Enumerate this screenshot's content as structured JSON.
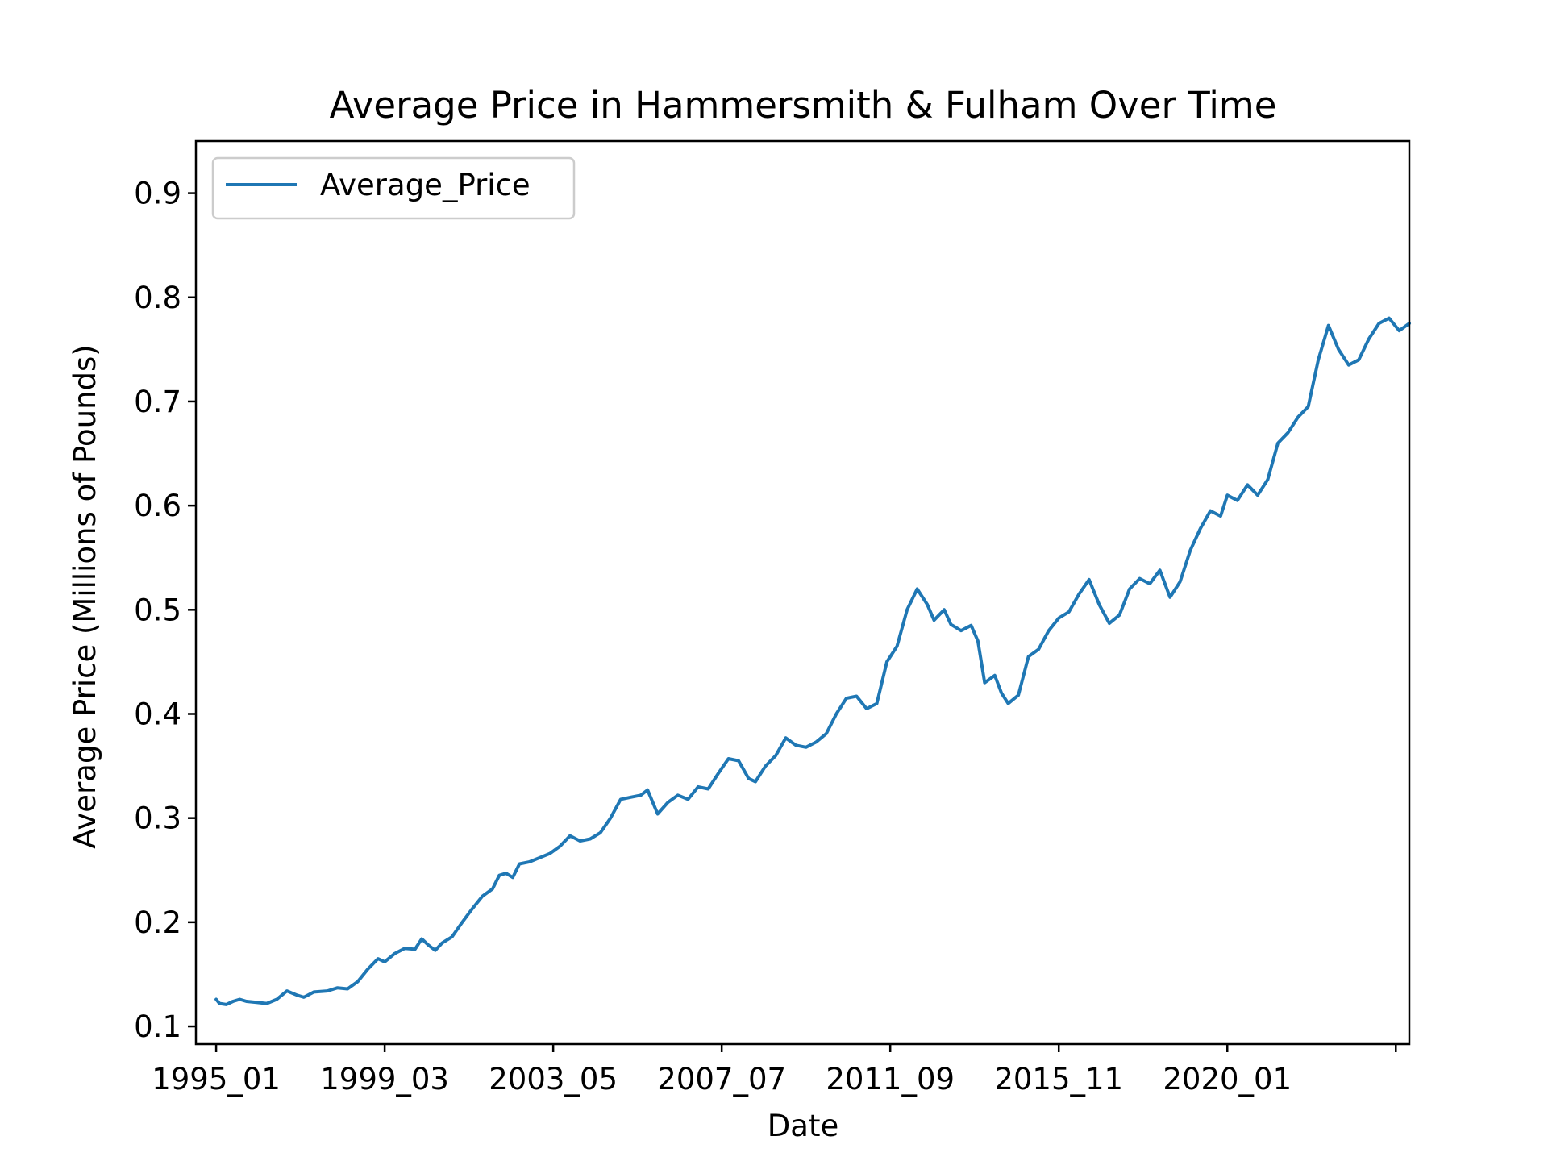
{
  "chart_data": {
    "type": "line",
    "title": "Average Price in Hammersmith & Fulham Over Time",
    "xlabel": "Date",
    "ylabel": "Average Price (Millions of Pounds)",
    "x_tick_labels": [
      "1995_01",
      "1999_03",
      "2003_05",
      "2007_07",
      "2011_09",
      "2015_11",
      "2020_01",
      ""
    ],
    "y_tick_labels": [
      "0.1",
      "0.2",
      "0.3",
      "0.4",
      "0.5",
      "0.6",
      "0.7",
      "0.8",
      "0.9"
    ],
    "y_ticks": [
      0.1,
      0.2,
      0.3,
      0.4,
      0.5,
      0.6,
      0.7,
      0.8,
      0.9
    ],
    "ylim": [
      0.083,
      0.95
    ],
    "xlim": [
      "1994_07",
      "2024_07"
    ],
    "legend_position": "top-left",
    "grid": false,
    "series": [
      {
        "name": "Average_Price",
        "color": "#1f77b4",
        "points": [
          [
            "1995_01",
            0.126
          ],
          [
            "1995_02",
            0.122
          ],
          [
            "1995_04",
            0.121
          ],
          [
            "1995_06",
            0.124
          ],
          [
            "1995_08",
            0.126
          ],
          [
            "1995_10",
            0.124
          ],
          [
            "1996_01",
            0.123
          ],
          [
            "1996_04",
            0.122
          ],
          [
            "1996_07",
            0.126
          ],
          [
            "1996_10",
            0.134
          ],
          [
            "1997_01",
            0.13
          ],
          [
            "1997_03",
            0.128
          ],
          [
            "1997_06",
            0.133
          ],
          [
            "1997_10",
            0.134
          ],
          [
            "1998_01",
            0.137
          ],
          [
            "1998_04",
            0.136
          ],
          [
            "1998_07",
            0.143
          ],
          [
            "1998_10",
            0.155
          ],
          [
            "1999_01",
            0.165
          ],
          [
            "1999_03",
            0.162
          ],
          [
            "1999_06",
            0.17
          ],
          [
            "1999_09",
            0.175
          ],
          [
            "1999_12",
            0.174
          ],
          [
            "2000_02",
            0.184
          ],
          [
            "2000_04",
            0.178
          ],
          [
            "2000_06",
            0.173
          ],
          [
            "2000_08",
            0.18
          ],
          [
            "2000_11",
            0.186
          ],
          [
            "2001_02",
            0.2
          ],
          [
            "2001_05",
            0.213
          ],
          [
            "2001_08",
            0.225
          ],
          [
            "2001_11",
            0.232
          ],
          [
            "2002_01",
            0.245
          ],
          [
            "2002_03",
            0.247
          ],
          [
            "2002_05",
            0.243
          ],
          [
            "2002_07",
            0.256
          ],
          [
            "2002_10",
            0.258
          ],
          [
            "2003_01",
            0.262
          ],
          [
            "2003_04",
            0.266
          ],
          [
            "2003_07",
            0.273
          ],
          [
            "2003_10",
            0.283
          ],
          [
            "2004_01",
            0.278
          ],
          [
            "2004_04",
            0.28
          ],
          [
            "2004_07",
            0.286
          ],
          [
            "2004_10",
            0.3
          ],
          [
            "2005_01",
            0.318
          ],
          [
            "2005_04",
            0.32
          ],
          [
            "2005_07",
            0.322
          ],
          [
            "2005_09",
            0.327
          ],
          [
            "2005_12",
            0.304
          ],
          [
            "2006_03",
            0.315
          ],
          [
            "2006_06",
            0.322
          ],
          [
            "2006_09",
            0.318
          ],
          [
            "2006_12",
            0.33
          ],
          [
            "2007_03",
            0.328
          ],
          [
            "2007_06",
            0.343
          ],
          [
            "2007_09",
            0.357
          ],
          [
            "2007_12",
            0.355
          ],
          [
            "2008_03",
            0.338
          ],
          [
            "2008_05",
            0.335
          ],
          [
            "2008_08",
            0.35
          ],
          [
            "2008_11",
            0.36
          ],
          [
            "2009_02",
            0.377
          ],
          [
            "2009_05",
            0.37
          ],
          [
            "2009_08",
            0.368
          ],
          [
            "2009_11",
            0.373
          ],
          [
            "2010_02",
            0.381
          ],
          [
            "2010_05",
            0.4
          ],
          [
            "2010_08",
            0.415
          ],
          [
            "2010_11",
            0.417
          ],
          [
            "2011_02",
            0.405
          ],
          [
            "2011_05",
            0.41
          ],
          [
            "2011_08",
            0.45
          ],
          [
            "2011_11",
            0.465
          ],
          [
            "2012_02",
            0.5
          ],
          [
            "2012_05",
            0.52
          ],
          [
            "2012_08",
            0.505
          ],
          [
            "2012_10",
            0.49
          ],
          [
            "2013_01",
            0.5
          ],
          [
            "2013_03",
            0.486
          ],
          [
            "2013_06",
            0.48
          ],
          [
            "2013_09",
            0.485
          ],
          [
            "2013_11",
            0.47
          ],
          [
            "2014_01",
            0.43
          ],
          [
            "2014_04",
            0.437
          ],
          [
            "2014_06",
            0.42
          ],
          [
            "2014_08",
            0.41
          ],
          [
            "2014_11",
            0.418
          ],
          [
            "2015_02",
            0.455
          ],
          [
            "2015_05",
            0.462
          ],
          [
            "2015_08",
            0.48
          ],
          [
            "2015_11",
            0.492
          ],
          [
            "2016_02",
            0.498
          ],
          [
            "2016_05",
            0.515
          ],
          [
            "2016_08",
            0.529
          ],
          [
            "2016_11",
            0.505
          ],
          [
            "2017_02",
            0.487
          ],
          [
            "2017_05",
            0.495
          ],
          [
            "2017_08",
            0.52
          ],
          [
            "2017_11",
            0.53
          ],
          [
            "2018_02",
            0.525
          ],
          [
            "2018_05",
            0.538
          ],
          [
            "2018_08",
            0.512
          ],
          [
            "2018_11",
            0.527
          ],
          [
            "2019_02",
            0.557
          ],
          [
            "2019_05",
            0.578
          ],
          [
            "2019_08",
            0.595
          ],
          [
            "2019_11",
            0.59
          ],
          [
            "2020_01",
            0.61
          ],
          [
            "2020_04",
            0.605
          ],
          [
            "2020_07",
            0.62
          ],
          [
            "2020_10",
            0.61
          ],
          [
            "2021_01",
            0.625
          ],
          [
            "2021_04",
            0.66
          ],
          [
            "2021_07",
            0.67
          ],
          [
            "2021_10",
            0.685
          ],
          [
            "2022_01",
            0.695
          ],
          [
            "2022_04",
            0.74
          ],
          [
            "2022_07",
            0.773
          ],
          [
            "2022_10",
            0.75
          ],
          [
            "2023_01",
            0.735
          ],
          [
            "2023_04",
            0.74
          ],
          [
            "2023_07",
            0.76
          ],
          [
            "2023_10",
            0.775
          ],
          [
            "2024_01",
            0.78
          ],
          [
            "2024_04",
            0.768
          ],
          [
            "2024_07",
            0.775
          ]
        ]
      }
    ]
  }
}
